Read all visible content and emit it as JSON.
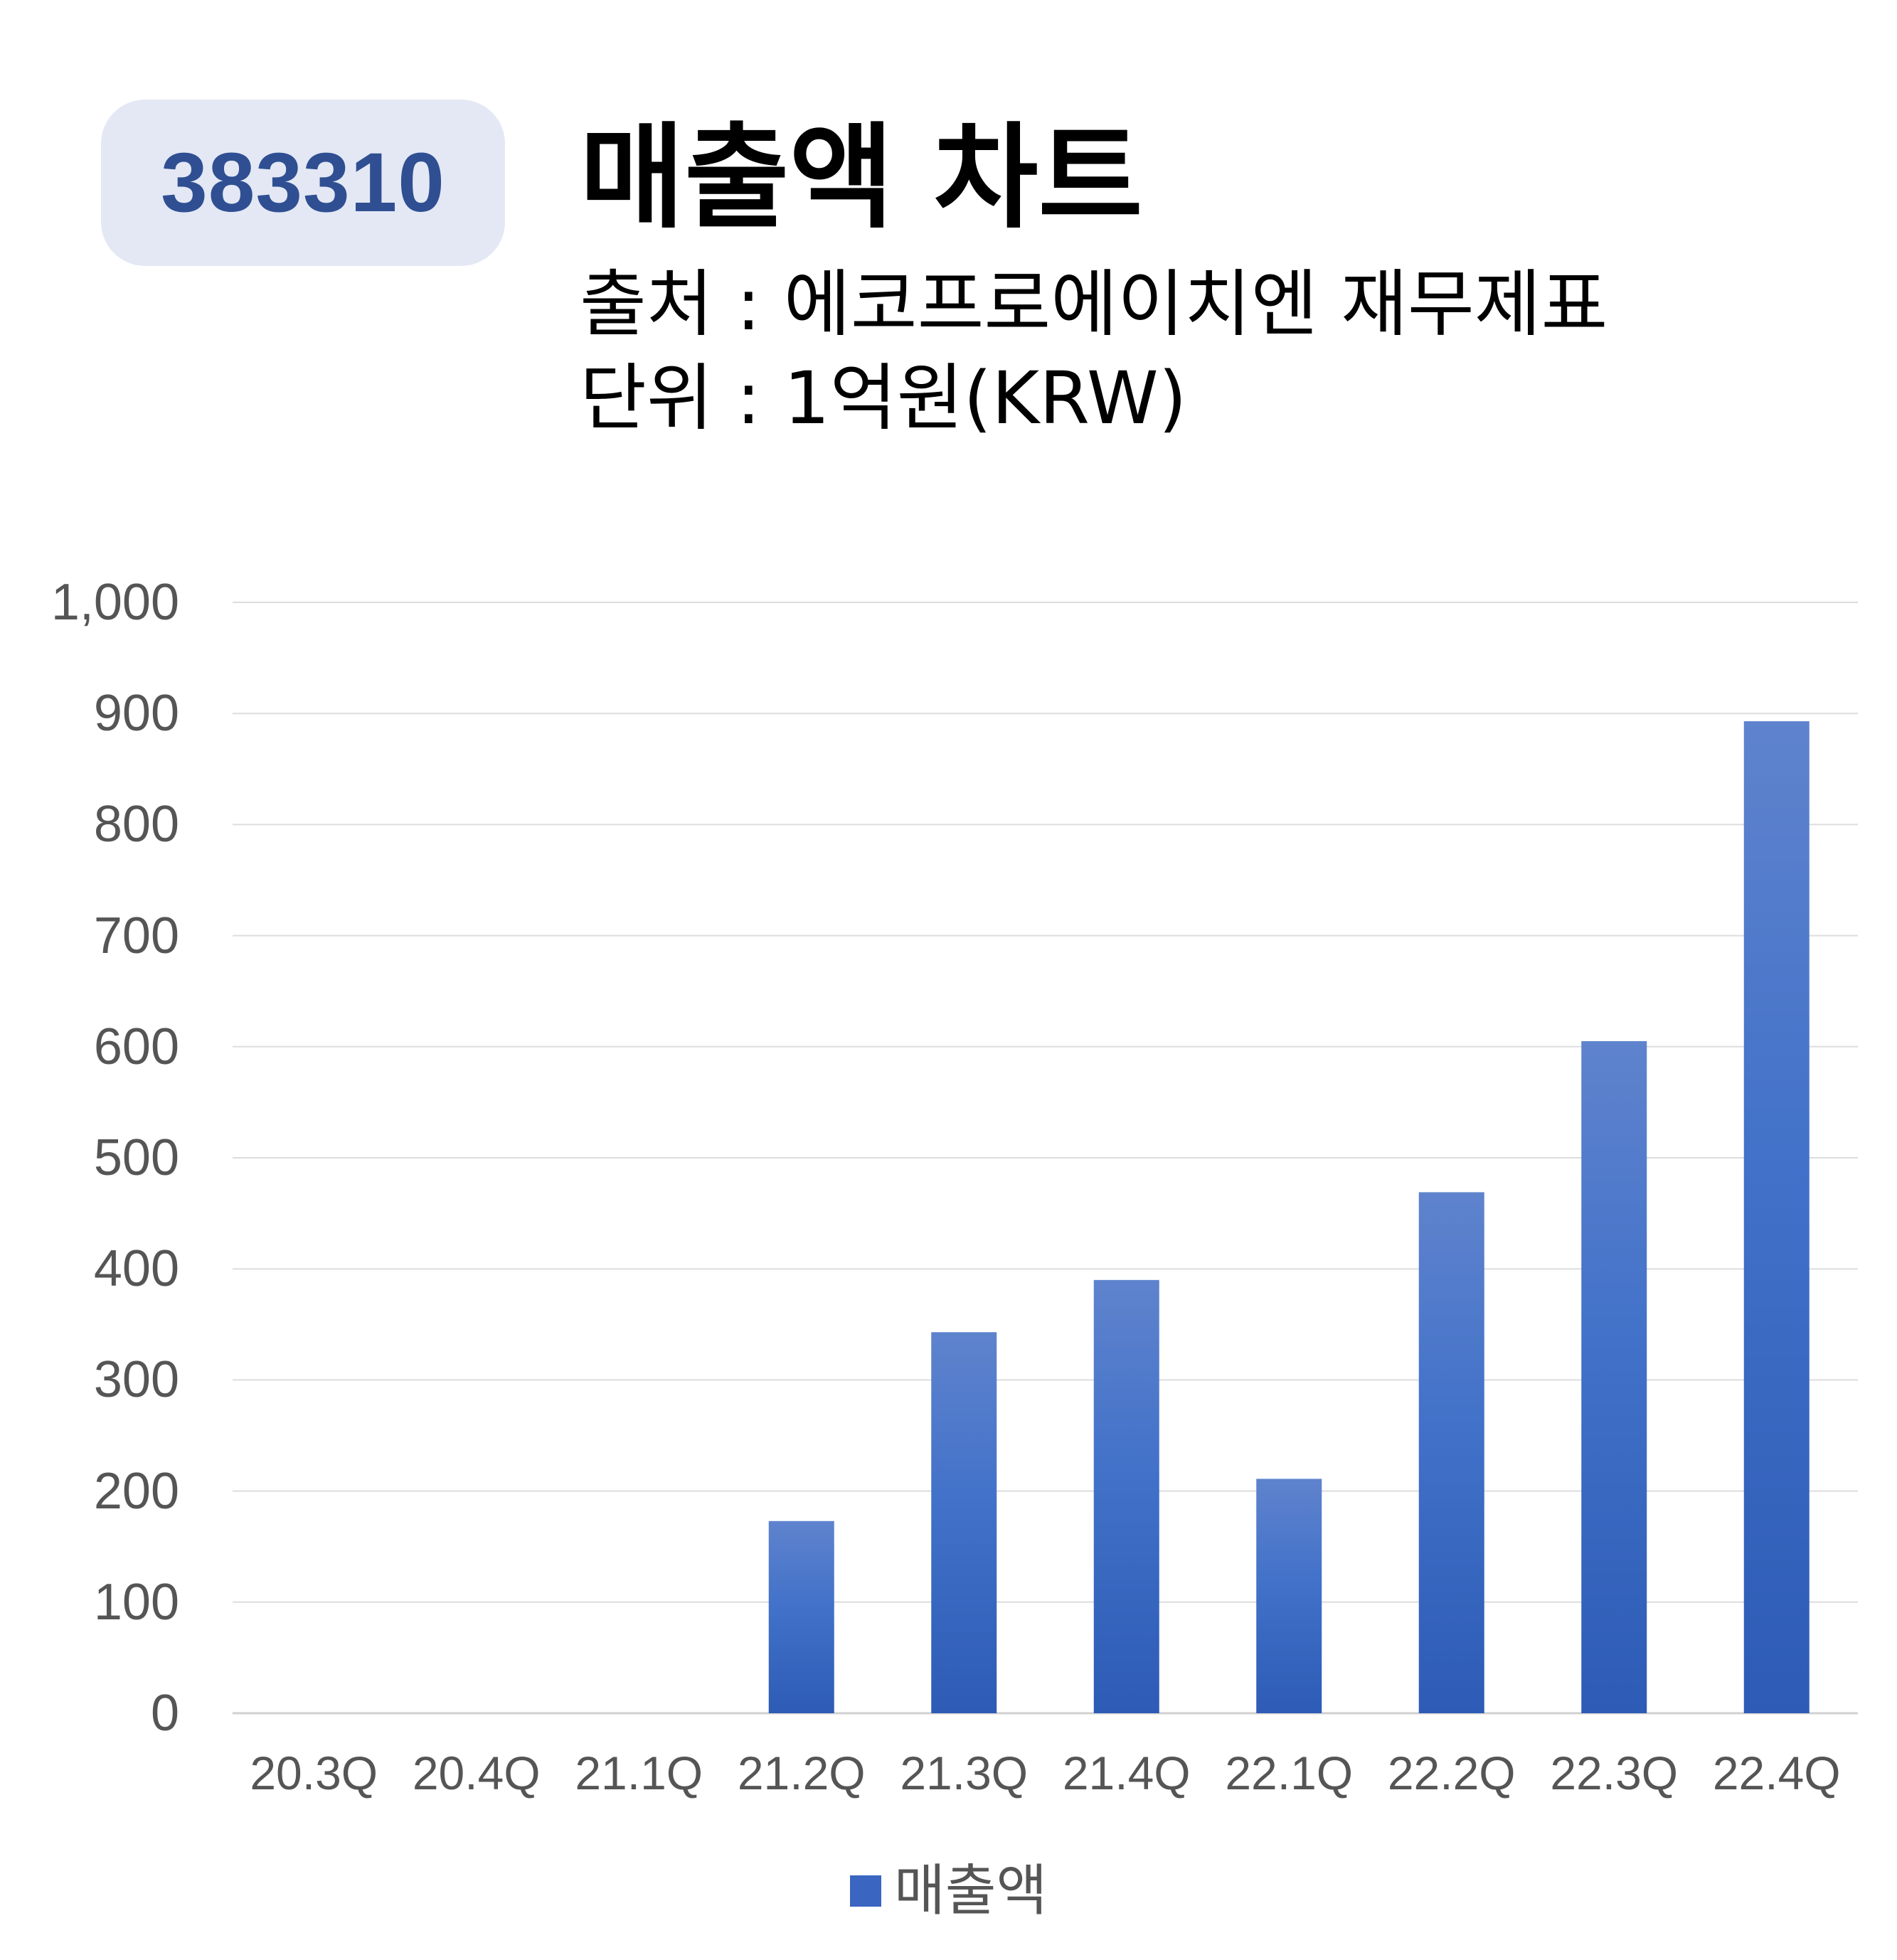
{
  "badge": {
    "code": "383310"
  },
  "header": {
    "title": "매출액 차트",
    "source": "출처 : 에코프로에이치엔 재무제표",
    "unit": "단위 : 1억원(KRW)"
  },
  "colors": {
    "bar": "#3a66c2",
    "bar_top": "#5b80cc",
    "badge_bg": "#e3e8f4",
    "badge_text": "#2f4f92",
    "grid": "#dddddd"
  },
  "chart_data": {
    "type": "bar",
    "categories": [
      "20.3Q",
      "20.4Q",
      "21.1Q",
      "21.2Q",
      "21.3Q",
      "21.4Q",
      "22.1Q",
      "22.2Q",
      "22.3Q",
      "22.4Q"
    ],
    "series": [
      {
        "name": "매출액",
        "values": [
          0,
          0,
          0,
          173,
          343,
          390,
          211,
          469,
          605,
          893
        ]
      }
    ],
    "yticks": [
      "0",
      "100",
      "200",
      "300",
      "400",
      "500",
      "600",
      "700",
      "800",
      "900",
      "1,000"
    ],
    "ylim": [
      0,
      1000
    ],
    "grid": true,
    "legend_position": "bottom"
  }
}
